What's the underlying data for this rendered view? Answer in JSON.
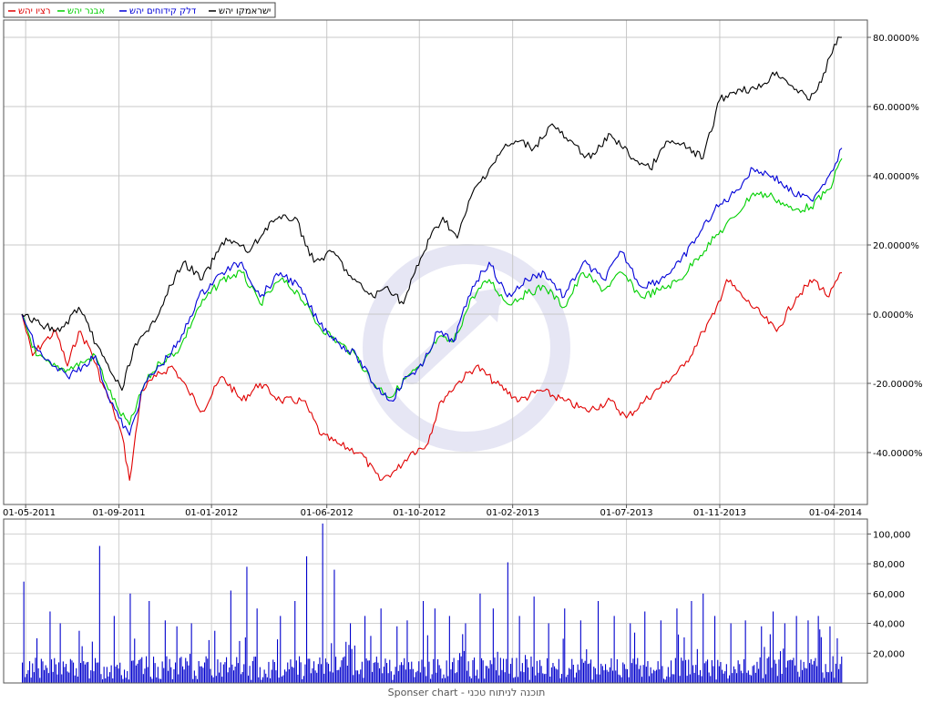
{
  "footer_text": "Sponser chart - תוכנה לניתוח טכני",
  "chart_data": [
    {
      "type": "line",
      "panel": "price-comparison",
      "legend_placement": "top-left",
      "grid": true,
      "y_unit": "%",
      "ylim": [
        -55,
        85
      ],
      "y_ticks": [
        "80.0000%",
        "60.0000%",
        "40.0000%",
        "20.0000%",
        "0.0000%",
        "-20.0000%",
        "-40.0000%"
      ],
      "y_tick_values": [
        80,
        60,
        40,
        20,
        0,
        -20,
        -40
      ],
      "x_ticks": [
        "01-05-2011",
        "01-09-2011",
        "01-01-2012",
        "01-06-2012",
        "01-10-2012",
        "01-02-2013",
        "01-07-2013",
        "01-11-2013",
        "01-04-2014"
      ],
      "x_tick_dates": [
        "2011-05-01",
        "2011-09-01",
        "2012-01-01",
        "2012-06-01",
        "2012-10-01",
        "2013-02-01",
        "2013-07-01",
        "2013-11-01",
        "2014-04-01"
      ],
      "colors": {
        "black": "#000000",
        "blue": "#0000d8",
        "green": "#00d000",
        "red": "#e00000"
      },
      "series": [
        {
          "name": "ישראמקו יהש",
          "color": "#000000",
          "x": [
            "2011-04-26",
            "2011-05-20",
            "2011-06-15",
            "2011-07-10",
            "2011-07-25",
            "2011-08-10",
            "2011-08-25",
            "2011-09-05",
            "2011-09-20",
            "2011-10-10",
            "2011-11-01",
            "2011-11-25",
            "2011-12-20",
            "2012-01-20",
            "2012-02-20",
            "2012-03-20",
            "2012-04-20",
            "2012-05-15",
            "2012-06-10",
            "2012-07-05",
            "2012-08-01",
            "2012-08-20",
            "2012-09-10",
            "2012-09-25",
            "2012-10-15",
            "2012-11-01",
            "2012-11-20",
            "2012-12-10",
            "2013-01-01",
            "2013-01-20",
            "2013-02-10",
            "2013-03-01",
            "2013-03-25",
            "2013-04-15",
            "2013-05-15",
            "2013-06-10",
            "2013-07-10",
            "2013-08-01",
            "2013-08-25",
            "2013-09-20",
            "2013-10-10",
            "2013-11-01",
            "2013-11-25",
            "2013-12-20",
            "2014-01-15",
            "2014-02-10",
            "2014-02-25",
            "2014-03-15",
            "2014-04-01",
            "2014-04-11"
          ],
          "values": [
            0,
            -3,
            -5,
            2,
            -5,
            -12,
            -18,
            -22,
            -10,
            -5,
            5,
            15,
            10,
            22,
            18,
            27,
            28,
            15,
            18,
            10,
            5,
            8,
            3,
            12,
            22,
            28,
            22,
            35,
            42,
            48,
            50,
            48,
            55,
            50,
            45,
            52,
            45,
            42,
            50,
            48,
            45,
            62,
            65,
            65,
            70,
            65,
            62,
            67,
            78,
            80
          ]
        },
        {
          "name": "דלק קידוחים יהש",
          "color": "#0000d8",
          "x": [
            "2011-04-26",
            "2011-05-15",
            "2011-06-05",
            "2011-06-25",
            "2011-07-15",
            "2011-08-01",
            "2011-08-15",
            "2011-09-01",
            "2011-09-15",
            "2011-10-05",
            "2011-10-25",
            "2011-11-20",
            "2011-12-15",
            "2012-01-15",
            "2012-02-10",
            "2012-03-05",
            "2012-04-01",
            "2012-04-25",
            "2012-05-20",
            "2012-06-15",
            "2012-07-10",
            "2012-08-01",
            "2012-08-25",
            "2012-09-15",
            "2012-10-05",
            "2012-10-25",
            "2012-11-15",
            "2012-12-10",
            "2013-01-01",
            "2013-01-25",
            "2013-02-20",
            "2013-03-15",
            "2013-04-10",
            "2013-05-05",
            "2013-06-01",
            "2013-06-25",
            "2013-07-20",
            "2013-08-15",
            "2013-09-10",
            "2013-10-01",
            "2013-10-25",
            "2013-11-20",
            "2013-12-15",
            "2014-01-10",
            "2014-02-05",
            "2014-03-01",
            "2014-03-25",
            "2014-04-11"
          ],
          "values": [
            0,
            -10,
            -15,
            -18,
            -15,
            -12,
            -22,
            -30,
            -35,
            -20,
            -15,
            -8,
            5,
            12,
            15,
            5,
            12,
            8,
            -2,
            -8,
            -12,
            -20,
            -25,
            -18,
            -15,
            -5,
            -8,
            8,
            15,
            5,
            10,
            12,
            5,
            15,
            10,
            18,
            8,
            10,
            15,
            22,
            30,
            35,
            42,
            40,
            35,
            33,
            40,
            48
          ]
        },
        {
          "name": "אבנר יהש",
          "color": "#00d000",
          "x": [
            "2011-04-26",
            "2011-05-15",
            "2011-06-05",
            "2011-06-25",
            "2011-07-15",
            "2011-08-01",
            "2011-08-15",
            "2011-09-01",
            "2011-09-15",
            "2011-10-05",
            "2011-10-25",
            "2011-11-20",
            "2011-12-15",
            "2012-01-15",
            "2012-02-10",
            "2012-03-05",
            "2012-04-01",
            "2012-04-25",
            "2012-05-20",
            "2012-06-15",
            "2012-07-10",
            "2012-08-01",
            "2012-08-25",
            "2012-09-15",
            "2012-10-05",
            "2012-10-25",
            "2012-11-15",
            "2012-12-10",
            "2013-01-01",
            "2013-01-25",
            "2013-02-20",
            "2013-03-15",
            "2013-04-10",
            "2013-05-05",
            "2013-06-01",
            "2013-06-25",
            "2013-07-20",
            "2013-08-15",
            "2013-09-10",
            "2013-10-01",
            "2013-10-25",
            "2013-11-20",
            "2013-12-15",
            "2014-01-10",
            "2014-02-05",
            "2014-03-01",
            "2014-03-25",
            "2014-04-11"
          ],
          "values": [
            0,
            -12,
            -15,
            -16,
            -14,
            -12,
            -20,
            -28,
            -32,
            -20,
            -14,
            -10,
            2,
            10,
            12,
            3,
            10,
            6,
            -3,
            -8,
            -12,
            -20,
            -24,
            -18,
            -15,
            -7,
            -8,
            5,
            10,
            3,
            6,
            8,
            2,
            12,
            7,
            12,
            5,
            7,
            10,
            16,
            22,
            28,
            35,
            34,
            30,
            31,
            36,
            45
          ]
        },
        {
          "name": "רציו יהש",
          "color": "#e00000",
          "x": [
            "2011-04-26",
            "2011-05-10",
            "2011-05-25",
            "2011-06-10",
            "2011-06-25",
            "2011-07-10",
            "2011-07-25",
            "2011-08-10",
            "2011-08-25",
            "2011-09-05",
            "2011-09-15",
            "2011-10-01",
            "2011-10-20",
            "2011-11-10",
            "2011-12-01",
            "2011-12-20",
            "2012-01-15",
            "2012-02-10",
            "2012-03-05",
            "2012-04-01",
            "2012-05-01",
            "2012-05-25",
            "2012-06-20",
            "2012-07-15",
            "2012-08-10",
            "2012-09-01",
            "2012-09-20",
            "2012-10-10",
            "2012-10-30",
            "2012-11-20",
            "2012-12-15",
            "2013-01-10",
            "2013-02-10",
            "2013-03-10",
            "2013-04-10",
            "2013-05-10",
            "2013-06-10",
            "2013-07-01",
            "2013-07-25",
            "2013-08-20",
            "2013-09-15",
            "2013-10-10",
            "2013-10-25",
            "2013-11-10",
            "2013-12-01",
            "2013-12-25",
            "2014-01-15",
            "2014-02-10",
            "2014-03-05",
            "2014-03-25",
            "2014-04-11"
          ],
          "values": [
            0,
            -12,
            -8,
            -5,
            -15,
            -5,
            -10,
            -20,
            -28,
            -35,
            -48,
            -22,
            -18,
            -15,
            -22,
            -28,
            -18,
            -25,
            -20,
            -25,
            -25,
            -35,
            -38,
            -40,
            -48,
            -45,
            -40,
            -38,
            -25,
            -20,
            -15,
            -20,
            -25,
            -22,
            -25,
            -28,
            -25,
            -30,
            -25,
            -20,
            -15,
            -5,
            0,
            10,
            5,
            0,
            -5,
            5,
            10,
            5,
            12
          ]
        }
      ]
    },
    {
      "type": "bar",
      "panel": "volume",
      "color": "#0000cc",
      "grid": true,
      "ylim": [
        0,
        110000
      ],
      "y_ticks": [
        "100,000",
        "80,000",
        "60,000",
        "40,000",
        "20,000"
      ],
      "y_tick_values": [
        100000,
        80000,
        60000,
        40000,
        20000
      ],
      "x_range": [
        "2011-04-26",
        "2014-04-11"
      ],
      "baseline": 10000,
      "spikes": [
        {
          "x": "2011-04-28",
          "value": 68000
        },
        {
          "x": "2011-05-15",
          "value": 30000
        },
        {
          "x": "2011-06-02",
          "value": 48000
        },
        {
          "x": "2011-06-15",
          "value": 40000
        },
        {
          "x": "2011-07-10",
          "value": 35000
        },
        {
          "x": "2011-08-05",
          "value": 92000
        },
        {
          "x": "2011-08-25",
          "value": 45000
        },
        {
          "x": "2011-09-15",
          "value": 60000
        },
        {
          "x": "2011-10-10",
          "value": 55000
        },
        {
          "x": "2011-11-01",
          "value": 42000
        },
        {
          "x": "2011-11-15",
          "value": 38000
        },
        {
          "x": "2011-12-05",
          "value": 40000
        },
        {
          "x": "2012-01-05",
          "value": 35000
        },
        {
          "x": "2012-01-25",
          "value": 62000
        },
        {
          "x": "2012-02-15",
          "value": 78000
        },
        {
          "x": "2012-03-01",
          "value": 50000
        },
        {
          "x": "2012-04-01",
          "value": 45000
        },
        {
          "x": "2012-04-20",
          "value": 55000
        },
        {
          "x": "2012-05-05",
          "value": 85000
        },
        {
          "x": "2012-05-25",
          "value": 107000
        },
        {
          "x": "2012-06-10",
          "value": 76000
        },
        {
          "x": "2012-07-01",
          "value": 40000
        },
        {
          "x": "2012-07-20",
          "value": 45000
        },
        {
          "x": "2012-08-10",
          "value": 50000
        },
        {
          "x": "2012-09-01",
          "value": 38000
        },
        {
          "x": "2012-09-15",
          "value": 42000
        },
        {
          "x": "2012-10-05",
          "value": 55000
        },
        {
          "x": "2012-10-20",
          "value": 50000
        },
        {
          "x": "2012-11-10",
          "value": 45000
        },
        {
          "x": "2012-12-01",
          "value": 40000
        },
        {
          "x": "2012-12-20",
          "value": 60000
        },
        {
          "x": "2013-01-05",
          "value": 50000
        },
        {
          "x": "2013-01-25",
          "value": 81000
        },
        {
          "x": "2013-02-10",
          "value": 45000
        },
        {
          "x": "2013-03-01",
          "value": 58000
        },
        {
          "x": "2013-03-20",
          "value": 40000
        },
        {
          "x": "2013-04-10",
          "value": 50000
        },
        {
          "x": "2013-05-01",
          "value": 42000
        },
        {
          "x": "2013-05-25",
          "value": 55000
        },
        {
          "x": "2013-06-15",
          "value": 45000
        },
        {
          "x": "2013-07-05",
          "value": 40000
        },
        {
          "x": "2013-07-25",
          "value": 48000
        },
        {
          "x": "2013-08-15",
          "value": 42000
        },
        {
          "x": "2013-09-05",
          "value": 50000
        },
        {
          "x": "2013-09-25",
          "value": 55000
        },
        {
          "x": "2013-10-10",
          "value": 60000
        },
        {
          "x": "2013-10-25",
          "value": 45000
        },
        {
          "x": "2013-11-15",
          "value": 40000
        },
        {
          "x": "2013-12-05",
          "value": 42000
        },
        {
          "x": "2013-12-25",
          "value": 38000
        },
        {
          "x": "2014-01-10",
          "value": 48000
        },
        {
          "x": "2014-01-25",
          "value": 40000
        },
        {
          "x": "2014-02-10",
          "value": 45000
        },
        {
          "x": "2014-02-25",
          "value": 42000
        },
        {
          "x": "2014-03-10",
          "value": 45000
        },
        {
          "x": "2014-03-25",
          "value": 38000
        },
        {
          "x": "2014-04-05",
          "value": 30000
        }
      ]
    }
  ]
}
